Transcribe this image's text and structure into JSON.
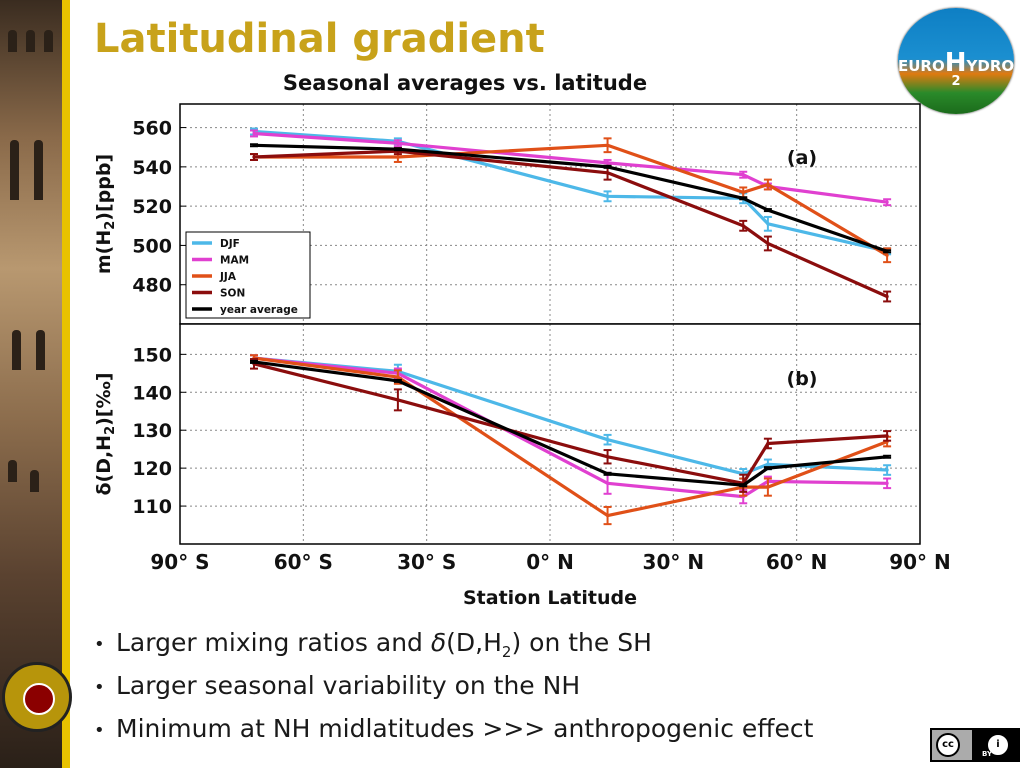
{
  "slide": {
    "title": "Latitudinal gradient",
    "logo": {
      "text_left": "EURO",
      "text_mid": "H",
      "text_right": "YDROS",
      "subscript": "2"
    },
    "bullets": [
      {
        "pre": "Larger mixing ratios and ",
        "delta": "δ",
        "mid": "(D,H",
        "sub": "2",
        "post": ") on the SH"
      },
      {
        "text": "Larger seasonal variability on the NH"
      },
      {
        "text": "Minimum at NH midlatitudes >>> anthropogenic effect"
      }
    ],
    "license": {
      "cc": "cc",
      "by_icon": "i",
      "by_text": "BY"
    }
  },
  "colors": {
    "title": "#c8a21a",
    "DJF": "#4db8e8",
    "MAM": "#e040d0",
    "JJA": "#e05018",
    "SON": "#8b0d0d",
    "year_average": "#000000"
  },
  "chart_data": {
    "type": "line",
    "title": "Seasonal averages vs. latitude",
    "xlabel": "Station Latitude",
    "xlim": [
      -90,
      90
    ],
    "x_ticks": [
      {
        "value": -90,
        "label": "90° S"
      },
      {
        "value": -60,
        "label": "60° S"
      },
      {
        "value": -30,
        "label": "30° S"
      },
      {
        "value": 0,
        "label": "0° N"
      },
      {
        "value": 30,
        "label": "30° N"
      },
      {
        "value": 60,
        "label": "60° N"
      },
      {
        "value": 90,
        "label": "90° N"
      }
    ],
    "grid": true,
    "panels": [
      {
        "id": "a",
        "label": "(a)",
        "ylabel": "m(H2)[ppb]",
        "ylabel_parts": {
          "pre": "m(H",
          "sub": "2",
          "post": ")[ppb]"
        },
        "ylim": [
          460,
          572
        ],
        "yticks": [
          480,
          500,
          520,
          540,
          560
        ],
        "legend": {
          "position": "bottom-left",
          "entries": [
            "DJF",
            "MAM",
            "JJA",
            "SON",
            "year average"
          ]
        },
        "x": [
          -72,
          -37,
          14,
          47,
          53,
          82
        ],
        "series": [
          {
            "name": "DJF",
            "values": [
              558,
              553,
              525,
              524,
              511,
              497
            ],
            "errors": [
              1,
              1,
              2,
              2,
              3,
              1
            ]
          },
          {
            "name": "MAM",
            "values": [
              557,
              552,
              542,
              536,
              530,
              522
            ],
            "errors": [
              1,
              1,
              1,
              1,
              1,
              1
            ]
          },
          {
            "name": "JJA",
            "values": [
              545,
              545,
              551,
              527,
              531,
              495
            ],
            "errors": [
              1,
              2,
              3,
              2,
              2,
              3
            ]
          },
          {
            "name": "SON",
            "values": [
              545,
              548,
              537,
              510,
              501,
              474
            ],
            "errors": [
              1,
              1,
              3,
              2,
              3,
              2
            ]
          },
          {
            "name": "year average",
            "values": [
              551,
              549,
              540,
              524,
              518,
              497
            ],
            "errors": [
              0,
              0,
              0,
              0,
              0,
              0
            ]
          }
        ]
      },
      {
        "id": "b",
        "label": "(b)",
        "ylabel": "δ(D,H2)[‰]",
        "ylabel_parts": {
          "pre": "δ(D,H",
          "sub": "2",
          "post": ")[‰]"
        },
        "ylim": [
          100,
          158
        ],
        "yticks": [
          110,
          120,
          130,
          140,
          150
        ],
        "x": [
          -72,
          -37,
          14,
          47,
          53,
          82
        ],
        "series": [
          {
            "name": "DJF",
            "values": [
              149,
              145.5,
              127.5,
              118.5,
              121,
              119.5
            ],
            "errors": [
              0.5,
              1.5,
              1,
              1,
              1,
              1
            ]
          },
          {
            "name": "MAM",
            "values": [
              149,
              145,
              116,
              112.5,
              116.5,
              116
            ],
            "errors": [
              0.5,
              1,
              2.5,
              1.5,
              1,
              1
            ]
          },
          {
            "name": "JJA",
            "values": [
              149,
              144,
              107.5,
              115,
              115,
              127
            ],
            "errors": [
              0.5,
              1.5,
              2,
              2,
              2,
              1
            ]
          },
          {
            "name": "SON",
            "values": [
              147.5,
              138,
              123,
              116,
              126.5,
              128.5
            ],
            "errors": [
              1,
              2.5,
              1.5,
              2,
              1,
              1
            ]
          },
          {
            "name": "year average",
            "values": [
              148,
              143,
              118.5,
              115.5,
              120,
              123
            ],
            "errors": [
              0,
              0,
              0,
              0,
              0,
              0
            ]
          }
        ]
      }
    ]
  }
}
